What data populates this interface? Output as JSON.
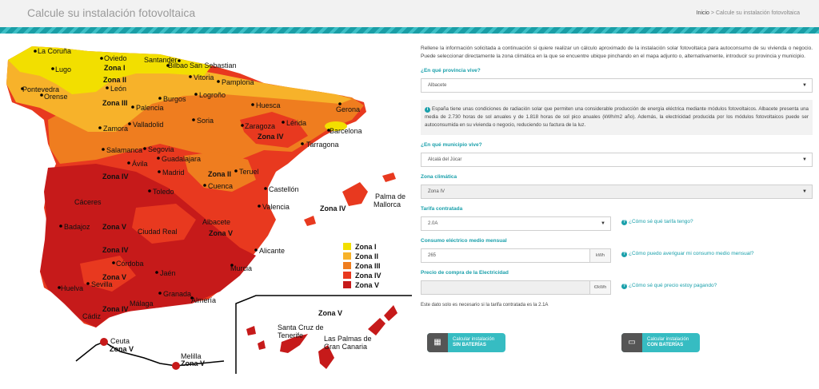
{
  "header": {
    "title": "Calcule su instalación fotovoltaica",
    "breadcrumb_home": "Inicio",
    "breadcrumb_sep": " > ",
    "breadcrumb_current": "Calcule su instalación fotovoltaica"
  },
  "form": {
    "intro": "Rellene la información solicitada a continuación si quiere realizar un cálculo aproximado de la instalación solar fotovoltaica para autoconsumo de su vivienda o negocio. Puede seleccionar directamente la zona climática en la que se encuentre ubique pinchando en el mapa adjunto o, alternativamente, introducir su provincia y municipio.",
    "provincia_label": "¿En qué provincia vive?",
    "provincia_value": "Albacete",
    "info_text": "España tiene unas condiciones de radiación solar que permiten una considerable producción de energía eléctrica mediante módulos fotovoltaicos. Albacete presenta una media de 2.730 horas de sol anuales y de 1.818 horas de sol pico anuales (kWh/m2 año). Además, la electricidad producida por los módulos fotovoltaicos puede ser autoconsumida en su vivienda o negocio, reduciendo su factura de la luz.",
    "municipio_label": "¿En qué municipio vive?",
    "municipio_value": "Alcalá del Júcar",
    "zona_label": "Zona climática",
    "zona_value": "Zona IV",
    "tarifa_label": "Tarifa contratada",
    "tarifa_value": "2.0A",
    "tarifa_help": "¿Cómo sé qué tarifa tengo?",
    "consumo_label": "Consumo eléctrico medio mensual",
    "consumo_value": "265",
    "consumo_unit": "kWh",
    "consumo_help": "¿Cómo puedo averiguar mi consumo medio mensual?",
    "precio_label": "Precio de compra de la Electricidad",
    "precio_value": "",
    "precio_unit": "€/kWh",
    "precio_help": "¿Cómo sé qué precio estoy pagando?",
    "note": "Este dato solo es necesario si la tarifa contratada es la 2.1A",
    "btn_sin_line1": "Calcular instalación",
    "btn_sin_line2": "SIN BATERÍAS",
    "btn_con_line1": "Calcular instalación",
    "btn_con_line2": "CON BATERÍAS"
  },
  "map": {
    "cities": {
      "la_coruna": "La Coruña",
      "oviedo": "Oviedo",
      "santander": "Santander",
      "bilbao": "Bilbao",
      "san_sebastian": "San Sebastian",
      "lugo": "Lugo",
      "vitoria": "Vitoria",
      "pamplona": "Pamplona",
      "pontevedra": "Pontevedra",
      "orense": "Orense",
      "leon": "León",
      "burgos": "Burgos",
      "logrono": "Logroño",
      "huesca": "Huesca",
      "gerona": "Gerona",
      "palencia": "Palencia",
      "zamora": "Zamora",
      "valladolid": "Valladolid",
      "soria": "Soria",
      "zaragoza": "Zaragoza",
      "lerida": "Lérida",
      "barcelona": "Barcelona",
      "tarragona": "Tarragona",
      "salamanca": "Salamanca",
      "segovia": "Segovia",
      "avila": "Ávila",
      "guadalajara": "Guadalajara",
      "madrid": "Madrid",
      "teruel": "Teruel",
      "cuenca": "Cuenca",
      "toledo": "Toledo",
      "castellon": "Castellón",
      "caceres": "Cáceres",
      "valencia": "Valencia",
      "palma": "Palma de",
      "mallorca": "Mallorca",
      "albacete": "Albacete",
      "badajoz": "Badajoz",
      "ciudad_real": "Ciudad Real",
      "alicante": "Alicante",
      "cordoba": "Córdoba",
      "murcia": "Murcia",
      "jaen": "Jaén",
      "huelva": "Huelva",
      "sevilla": "Sevilla",
      "granada": "Granada",
      "malaga": "Málaga",
      "almeria": "Almería",
      "cadiz": "Cádiz",
      "ceuta": "Ceuta",
      "melilla": "Melilla",
      "santa_cruz": "Santa Cruz de",
      "tenerife": "Tenerife",
      "las_palmas": "Las Palmas de",
      "gran_canaria": "Gran Canaria"
    },
    "zones": {
      "z1": "Zona I",
      "z2": "Zona II",
      "z3": "Zona III",
      "z4": "Zona IV",
      "z5": "Zona V"
    },
    "legend": [
      {
        "label": "Zona I",
        "color": "#f2df00"
      },
      {
        "label": "Zona II",
        "color": "#f7b22a"
      },
      {
        "label": "Zona III",
        "color": "#ef7d1f"
      },
      {
        "label": "Zona IV",
        "color": "#e8391f"
      },
      {
        "label": "Zona V",
        "color": "#c61a1a"
      }
    ]
  }
}
